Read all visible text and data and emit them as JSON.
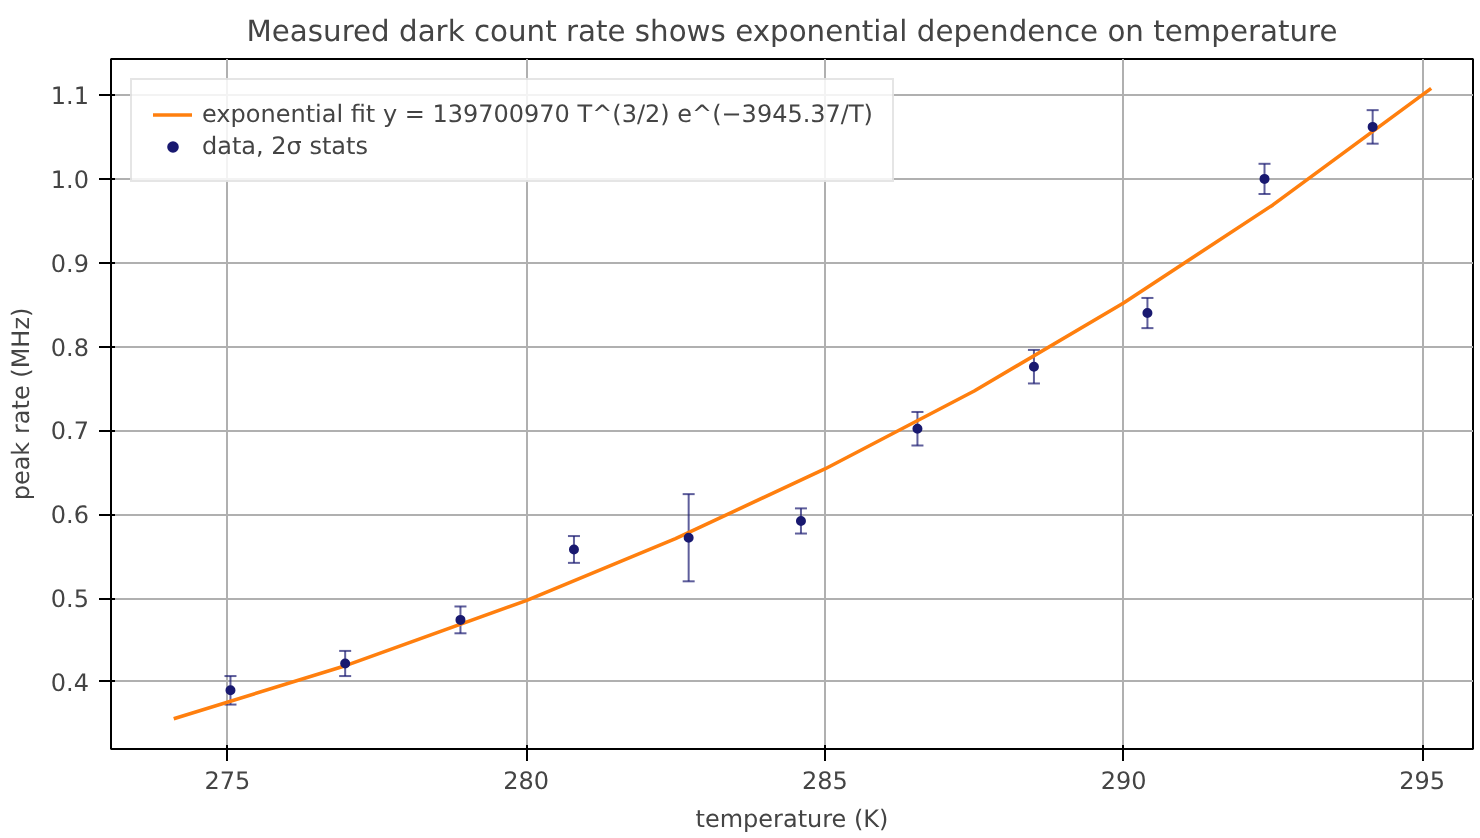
{
  "chart_data": {
    "type": "scatter",
    "title": "Measured dark count rate shows exponential dependence on temperature",
    "xlabel": "temperature (K)",
    "ylabel": "peak rate (MHz)",
    "xlim": [
      273.05,
      295.85
    ],
    "ylim": [
      0.32,
      1.143
    ],
    "xticks": [
      275,
      280,
      285,
      290,
      295
    ],
    "yticks": [
      0.4,
      0.5,
      0.6,
      0.7,
      0.8,
      0.9,
      {
        "value": 1.0,
        "label": "1.0"
      },
      1.1
    ],
    "grid": true,
    "legend": "top left",
    "series": [
      {
        "name": "exponential fit y = 139700970 T^(3/2) e^(−3945.37/T)",
        "type": "line",
        "color": "#ff7f0e",
        "x": [
          274.1,
          277,
          280,
          282.5,
          285,
          287.5,
          290,
          292.5,
          295.15
        ],
        "values": [
          0.356,
          0.42,
          0.497,
          0.571,
          0.654,
          0.747,
          0.852,
          0.969,
          1.108
        ]
      },
      {
        "name": "data, 2σ stats",
        "marker": "circle",
        "color": "#191970",
        "x": [
          275.05,
          276.97,
          278.9,
          280.8,
          282.72,
          284.6,
          286.55,
          288.5,
          290.4,
          292.36,
          294.17
        ],
        "values": [
          0.39,
          0.422,
          0.474,
          0.558,
          0.572,
          0.592,
          0.702,
          0.776,
          0.84,
          1.0,
          1.062
        ],
        "errors": [
          0.017,
          0.015,
          0.016,
          0.016,
          0.052,
          0.015,
          0.02,
          0.02,
          0.018,
          0.018,
          0.02
        ]
      }
    ]
  }
}
